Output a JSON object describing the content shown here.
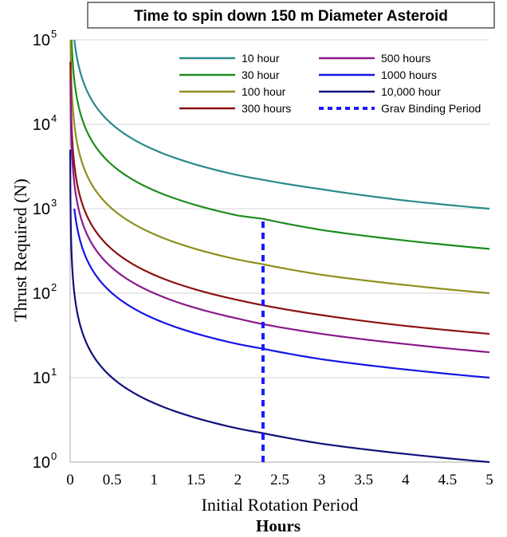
{
  "chart_data": {
    "type": "line",
    "title": "Time to spin down 150 m Diameter Asteroid",
    "xlabel": "Initial Rotation Period",
    "xlabel_units": "Hours",
    "ylabel": "Thrust Required (N)",
    "xlim": [
      0,
      5
    ],
    "ylim": [
      1,
      100000
    ],
    "yscale": "log",
    "grid": "horizontal",
    "legend_placement": "top-right",
    "x_ticks": [
      "0",
      "0.5",
      "1",
      "1.5",
      "2",
      "2.5",
      "3",
      "3.5",
      "4",
      "4.5",
      "5"
    ],
    "y_ticks": [
      {
        "base": "10",
        "exp": "0"
      },
      {
        "base": "10",
        "exp": "1"
      },
      {
        "base": "10",
        "exp": "2"
      },
      {
        "base": "10",
        "exp": "3"
      },
      {
        "base": "10",
        "exp": "4"
      },
      {
        "base": "10",
        "exp": "5"
      }
    ],
    "series": [
      {
        "name": "10 hour",
        "color": "#2a8a8a",
        "dashed": false,
        "x": [
          0.05,
          0.1,
          0.25,
          0.5,
          1,
          2,
          2.3,
          3,
          4,
          5
        ],
        "y": [
          100000,
          50000,
          20000,
          10000,
          5000,
          2500,
          2200,
          1700,
          1250,
          1000
        ]
      },
      {
        "name": "30 hour",
        "color": "#1e8c1e",
        "dashed": false,
        "x": [
          0.017,
          0.05,
          0.1,
          0.25,
          0.5,
          1,
          2,
          2.3,
          3,
          4,
          5
        ],
        "y": [
          100000,
          33000,
          16500,
          6600,
          3300,
          1650,
          830,
          760,
          560,
          420,
          335
        ]
      },
      {
        "name": "100 hour",
        "color": "#8f8f1e",
        "dashed": false,
        "x": [
          0.005,
          0.05,
          0.1,
          0.25,
          0.5,
          1,
          2,
          2.3,
          3,
          4,
          5
        ],
        "y": [
          100000,
          10000,
          5000,
          2000,
          1000,
          500,
          250,
          220,
          165,
          125,
          100
        ]
      },
      {
        "name": "300 hours",
        "color": "#8b1010",
        "dashed": false,
        "x": [
          0.003,
          0.05,
          0.1,
          0.25,
          0.5,
          1,
          2,
          2.3,
          3,
          4,
          5
        ],
        "y": [
          55000,
          3300,
          1650,
          660,
          330,
          165,
          83,
          72,
          55,
          41,
          33
        ]
      },
      {
        "name": "500 hours",
        "color": "#8a1a8a",
        "dashed": false,
        "x": [
          0.003,
          0.05,
          0.1,
          0.25,
          0.5,
          1,
          2,
          2.3,
          3,
          4,
          5
        ],
        "y": [
          33000,
          2000,
          1000,
          400,
          200,
          100,
          50,
          43,
          33,
          25,
          20
        ]
      },
      {
        "name": "1000 hours",
        "color": "#1414e6",
        "dashed": false,
        "x": [
          0.05,
          0.1,
          0.25,
          0.5,
          1,
          2,
          2.3,
          3,
          4,
          5
        ],
        "y": [
          1000,
          500,
          200,
          100,
          50,
          25,
          22,
          16.5,
          12.5,
          10
        ]
      },
      {
        "name": "10,000 hour",
        "color": "#10107a",
        "dashed": false,
        "x": [
          0.001,
          0.01,
          0.05,
          0.1,
          0.25,
          0.5,
          1,
          2,
          2.3,
          3,
          4,
          5
        ],
        "y": [
          5000,
          500,
          100,
          50,
          20,
          10,
          5,
          2.5,
          2.2,
          1.65,
          1.25,
          1
        ]
      },
      {
        "name": "Grav Binding Period",
        "color": "#1a1aff",
        "dashed": true,
        "x": [
          2.3,
          2.3
        ],
        "y": [
          1,
          760
        ]
      }
    ]
  }
}
